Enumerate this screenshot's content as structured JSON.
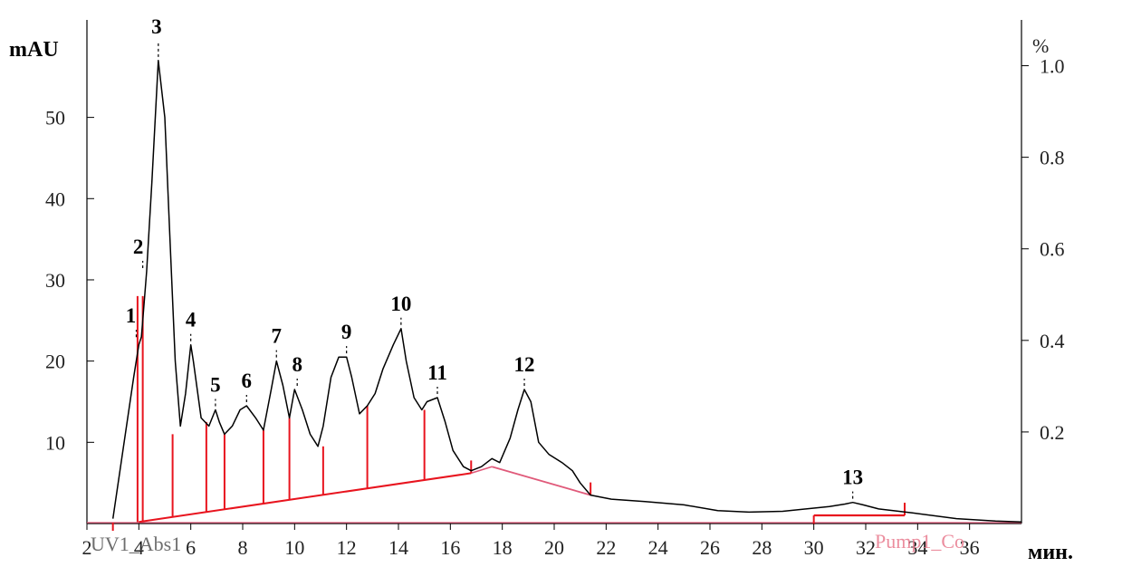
{
  "chart_data": {
    "type": "line",
    "y_left_label": "mAU",
    "y_right_label": "%",
    "x_label": "мин.",
    "x_ticks": [
      "2",
      "4",
      "6",
      "8",
      "10",
      "12",
      "14",
      "16",
      "18",
      "20",
      "22",
      "24",
      "26",
      "28",
      "30",
      "32",
      "34",
      "36"
    ],
    "y_left_ticks": [
      "10",
      "20",
      "30",
      "40",
      "50"
    ],
    "y_right_ticks": [
      "0.2",
      "0.4",
      "0.6",
      "0.8",
      "1.0"
    ],
    "xlim": [
      2,
      38
    ],
    "ylim_left": [
      0,
      62
    ],
    "ylim_right": [
      0,
      1.1
    ],
    "grid": false,
    "bottom_left_text": "UV1_Abs1",
    "bottom_right_text": "Pump1_Co",
    "colors": {
      "trace": "#000000",
      "integration": "#e8141e",
      "baseline": "#e05a7a",
      "watermark": "#e87a8e"
    },
    "series": [
      {
        "x": [
          3.0,
          3.8,
          4.0,
          4.1,
          4.3,
          4.5,
          4.75,
          5.0,
          5.2,
          5.4,
          5.6,
          5.8,
          6.0,
          6.1,
          6.4,
          6.7,
          6.95,
          7.1,
          7.3,
          7.6,
          7.9,
          8.15,
          8.5,
          8.8,
          9.1,
          9.3,
          9.55,
          9.8,
          10.0,
          10.3,
          10.6,
          10.9,
          11.1,
          11.4,
          11.7,
          12.0,
          12.2,
          12.5,
          12.8,
          13.1,
          13.4,
          13.8,
          14.1,
          14.3,
          14.6,
          14.9,
          15.1,
          15.5,
          15.8,
          16.1,
          16.5,
          16.8,
          17.2,
          17.6,
          17.9,
          18.3,
          18.6,
          18.85,
          19.1,
          19.4,
          19.8,
          20.3,
          20.7,
          21.0,
          21.4,
          22.2,
          23.5,
          25.0,
          26.3,
          27.5,
          28.8,
          29.7,
          30.6,
          31.2,
          31.5,
          31.9,
          32.5,
          33.8,
          35.5,
          37.0,
          38.0
        ],
        "values": [
          0.6,
          18,
          22,
          23,
          31,
          42,
          57,
          50,
          35,
          20,
          12,
          16,
          22,
          20,
          13,
          12,
          14,
          12.5,
          11,
          12,
          14,
          14.5,
          13,
          11.5,
          16.5,
          20,
          17,
          13,
          16.5,
          14,
          11,
          9.5,
          12,
          18,
          20.5,
          20.5,
          18,
          13.5,
          14.5,
          16,
          19,
          22,
          24,
          20,
          15.5,
          14,
          15,
          15.5,
          12.5,
          9,
          7,
          6.5,
          7,
          8,
          7.5,
          10.5,
          14,
          16.5,
          15,
          10,
          8.5,
          7.5,
          6.5,
          5,
          3.5,
          3.0,
          2.7,
          2.3,
          1.6,
          1.4,
          1.5,
          1.8,
          2.1,
          2.4,
          2.6,
          2.3,
          1.8,
          1.3,
          0.6,
          0.3,
          0.2
        ]
      }
    ],
    "peaks": [
      {
        "label": "1",
        "x": 3.9,
        "y": 22.5
      },
      {
        "label": "2",
        "x": 4.15,
        "y": 31
      },
      {
        "label": "3",
        "x": 4.75,
        "y": 57
      },
      {
        "label": "4",
        "x": 6.0,
        "y": 22
      },
      {
        "label": "5",
        "x": 6.95,
        "y": 14
      },
      {
        "label": "6",
        "x": 8.15,
        "y": 14.5
      },
      {
        "label": "7",
        "x": 9.3,
        "y": 20
      },
      {
        "label": "8",
        "x": 10.1,
        "y": 16.5
      },
      {
        "label": "9",
        "x": 12.0,
        "y": 20.5
      },
      {
        "label": "10",
        "x": 14.1,
        "y": 24
      },
      {
        "label": "11",
        "x": 15.5,
        "y": 15.5
      },
      {
        "label": "12",
        "x": 18.85,
        "y": 16.5
      },
      {
        "label": "13",
        "x": 31.5,
        "y": 2.6
      }
    ]
  }
}
